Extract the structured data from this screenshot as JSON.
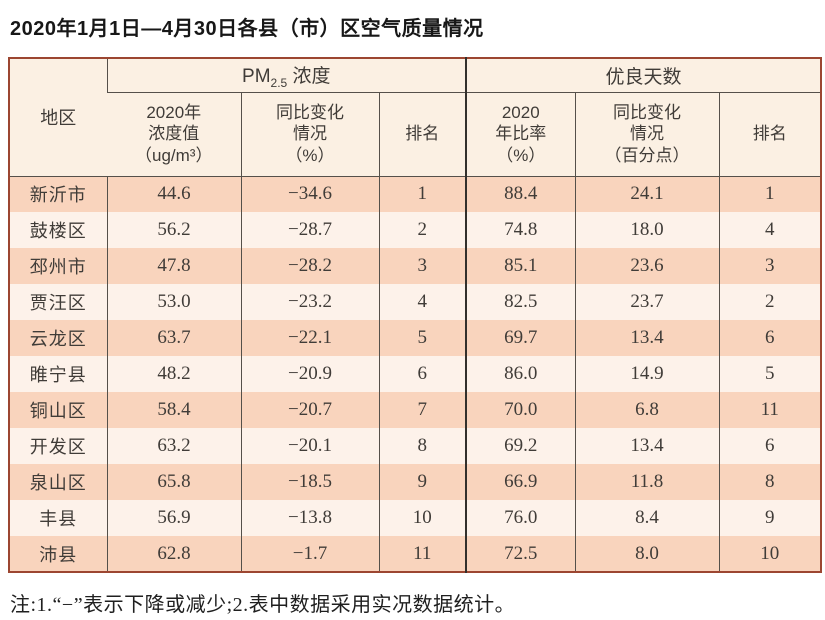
{
  "page": {
    "title": "2020年1月1日—4月30日各县（市）区空气质量情况",
    "footnote": "注:1.“−”表示下降或减少;2.表中数据采用实况数据统计。"
  },
  "colors": {
    "outer_border": "#9c4631",
    "grid_line": "#55504a",
    "header_bg": "#fbf0e3",
    "row_odd": "#f9d4bd",
    "row_even": "#fdf2ea",
    "text": "#403c38"
  },
  "table": {
    "header": {
      "region": "地区",
      "pm_group": {
        "prefix": "PM",
        "sub": "2.5",
        "suffix": " 浓度"
      },
      "good_group": "优良天数",
      "pm_value": "2020年\n浓度值\n（ug/m³）",
      "pm_change": "同比变化\n情况\n（%）",
      "pm_rank": "排名",
      "good_rate": "2020\n年比率\n（%）",
      "good_change": "同比变化\n情况\n（百分点）",
      "good_rank": "排名"
    },
    "columns": [
      "region",
      "pm-value",
      "pm-change",
      "pm-rank",
      "good-rate",
      "good-change",
      "good-rank"
    ],
    "rows": [
      [
        "新沂市",
        "44.6",
        "−34.6",
        "1",
        "88.4",
        "24.1",
        "1"
      ],
      [
        "鼓楼区",
        "56.2",
        "−28.7",
        "2",
        "74.8",
        "18.0",
        "4"
      ],
      [
        "邳州市",
        "47.8",
        "−28.2",
        "3",
        "85.1",
        "23.6",
        "3"
      ],
      [
        "贾汪区",
        "53.0",
        "−23.2",
        "4",
        "82.5",
        "23.7",
        "2"
      ],
      [
        "云龙区",
        "63.7",
        "−22.1",
        "5",
        "69.7",
        "13.4",
        "6"
      ],
      [
        "睢宁县",
        "48.2",
        "−20.9",
        "6",
        "86.0",
        "14.9",
        "5"
      ],
      [
        "铜山区",
        "58.4",
        "−20.7",
        "7",
        "70.0",
        "6.8",
        "11"
      ],
      [
        "开发区",
        "63.2",
        "−20.1",
        "8",
        "69.2",
        "13.4",
        "6"
      ],
      [
        "泉山区",
        "65.8",
        "−18.5",
        "9",
        "66.9",
        "11.8",
        "8"
      ],
      [
        "丰县",
        "56.9",
        "−13.8",
        "10",
        "76.0",
        "8.4",
        "9"
      ],
      [
        "沛县",
        "62.8",
        "−1.7",
        "11",
        "72.5",
        "8.0",
        "10"
      ]
    ]
  }
}
